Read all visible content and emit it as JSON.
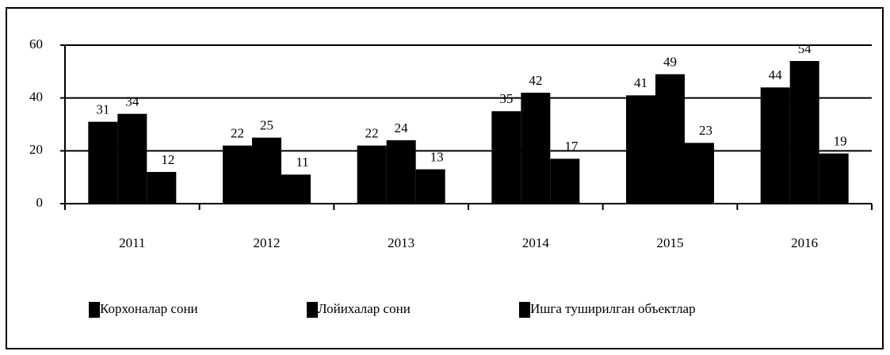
{
  "chart_data": {
    "type": "bar",
    "categories": [
      "2011",
      "2012",
      "2013",
      "2014",
      "2015",
      "2016"
    ],
    "series": [
      {
        "name": "Корхоналар сони",
        "color": "#000000",
        "values": [
          31,
          22,
          22,
          35,
          41,
          44
        ]
      },
      {
        "name": "Лойихалар сони",
        "color": "#000000",
        "values": [
          34,
          25,
          24,
          42,
          49,
          54
        ]
      },
      {
        "name": "Ишга туширилган объектлар",
        "color": "#000000",
        "values": [
          12,
          11,
          13,
          17,
          23,
          19
        ]
      }
    ],
    "ylim": [
      0,
      60
    ],
    "yticks": [
      0,
      20,
      40,
      60
    ],
    "grid": true,
    "legend": "bottom"
  }
}
